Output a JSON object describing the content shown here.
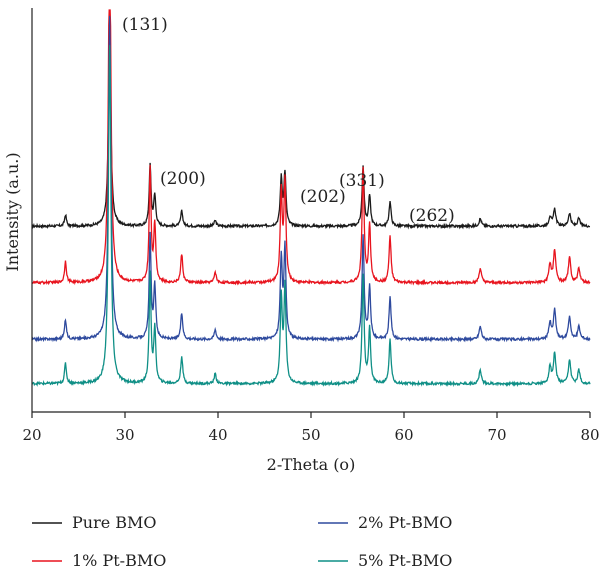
{
  "chart_data": {
    "type": "line",
    "title": "",
    "xlabel": "2-Theta (o)",
    "ylabel": "Intensity (a.u.)",
    "xlim": [
      20,
      80
    ],
    "xticks": [
      20,
      30,
      40,
      50,
      60,
      70,
      80
    ],
    "yticks_shown": false,
    "grid": false,
    "legend_position": "bottom",
    "annotations": [
      {
        "text": "(131)",
        "x": 28.3
      },
      {
        "text": "(200)",
        "x": 32.8
      },
      {
        "text": "(202)",
        "x": 47.1
      },
      {
        "text": "(331)",
        "x": 55.6
      },
      {
        "text": "(262)",
        "x": 58.5
      }
    ],
    "peaks": [
      {
        "x": 23.6,
        "rel": 0.06,
        "w": 0.12
      },
      {
        "x": 28.35,
        "rel": 1.0,
        "w": 0.16
      },
      {
        "x": 32.7,
        "rel": 0.32,
        "w": 0.12
      },
      {
        "x": 33.2,
        "rel": 0.16,
        "w": 0.13
      },
      {
        "x": 36.1,
        "rel": 0.08,
        "w": 0.13
      },
      {
        "x": 39.7,
        "rel": 0.03,
        "w": 0.13
      },
      {
        "x": 46.8,
        "rel": 0.25,
        "w": 0.13
      },
      {
        "x": 47.2,
        "rel": 0.28,
        "w": 0.13
      },
      {
        "x": 55.6,
        "rel": 0.32,
        "w": 0.13
      },
      {
        "x": 56.3,
        "rel": 0.16,
        "w": 0.13
      },
      {
        "x": 58.5,
        "rel": 0.13,
        "w": 0.13
      },
      {
        "x": 68.2,
        "rel": 0.04,
        "w": 0.15
      },
      {
        "x": 75.7,
        "rel": 0.05,
        "w": 0.15
      },
      {
        "x": 76.2,
        "rel": 0.09,
        "w": 0.15
      },
      {
        "x": 77.8,
        "rel": 0.07,
        "w": 0.15
      },
      {
        "x": 78.8,
        "rel": 0.04,
        "w": 0.15
      }
    ],
    "series": [
      {
        "name": "Pure BMO",
        "color": "#1a1a1a",
        "baseline": 0.46,
        "peak_scale": 0.5
      },
      {
        "name": "1% Pt-BMO",
        "color": "#e8141e",
        "baseline": 0.32,
        "peak_scale": 0.95
      },
      {
        "name": "2% Pt-BMO",
        "color": "#2e4a9e",
        "baseline": 0.18,
        "peak_scale": 0.86
      },
      {
        "name": "5% Pt-BMO",
        "color": "#0f8f86",
        "baseline": 0.07,
        "peak_scale": 0.9
      }
    ]
  }
}
